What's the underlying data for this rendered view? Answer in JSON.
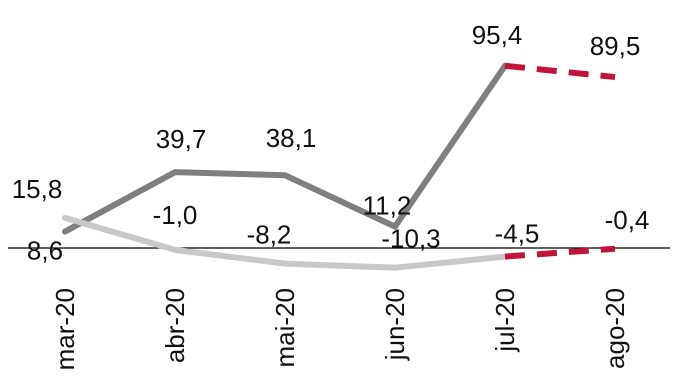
{
  "chart_data": {
    "type": "line",
    "categories": [
      "mar-20",
      "abr-20",
      "mai-20",
      "jun-20",
      "jul-20",
      "ago-20"
    ],
    "series": [
      {
        "values": [
          8.6,
          39.7,
          38.1,
          11.2,
          95.4,
          89.5
        ],
        "labels": [
          "8,6",
          "39,7",
          "38,1",
          "11,2",
          "95,4",
          "89,5"
        ],
        "color": "#7f7f7f",
        "projection_color": "#c0143c",
        "projected_from_index": 4
      },
      {
        "values": [
          15.8,
          -1.0,
          -8.2,
          -10.3,
          -4.5,
          -0.4
        ],
        "labels": [
          "15,8",
          "-1,0",
          "-8,2",
          "-10,3",
          "-4,5",
          "-0,4"
        ],
        "color": "#c8c8c8",
        "projection_color": "#c0143c",
        "projected_from_index": 4
      }
    ],
    "title": "",
    "xlabel": "",
    "ylabel": "",
    "ylim": [
      -15,
      100
    ],
    "grid": false,
    "zero_line": true
  }
}
